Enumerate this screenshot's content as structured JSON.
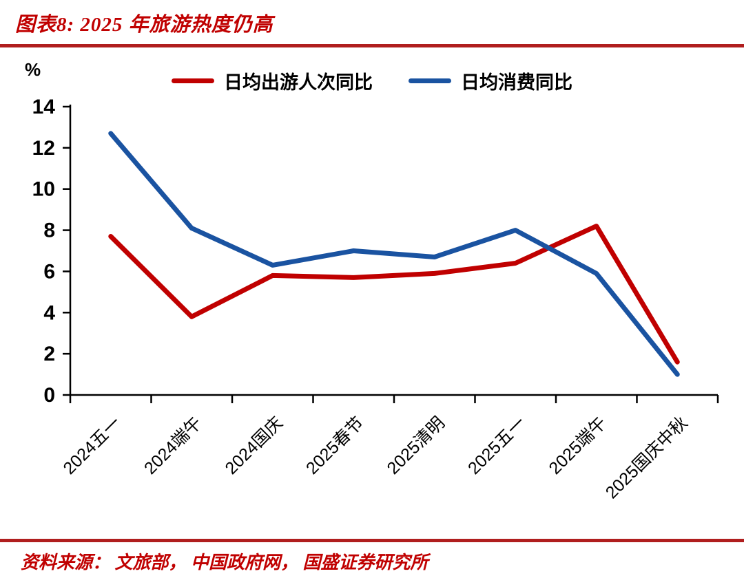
{
  "page": {
    "title": "图表8:  2025 年旅游热度仍高",
    "source": "资料来源：  文旅部，  中国政府网，  国盛证券研究所"
  },
  "colors": {
    "accent_red": "#C00000",
    "rule_red": "#B01E1E",
    "series_red": "#C00000",
    "series_blue": "#1A53A1",
    "axis_black": "#000000"
  },
  "chart_data": {
    "type": "line",
    "title": "图表8: 2025 年旅游热度仍高",
    "unit_label": "%",
    "categories": [
      "2024五一",
      "2024端午",
      "2024国庆",
      "2025春节",
      "2025清明",
      "2025五一",
      "2025端午",
      "2025国庆中秋"
    ],
    "series": [
      {
        "name": "日均出游人次同比",
        "color": "#C00000",
        "values": [
          7.7,
          3.8,
          5.8,
          5.7,
          5.9,
          6.4,
          8.2,
          1.6
        ]
      },
      {
        "name": "日均消费同比",
        "color": "#1A53A1",
        "values": [
          12.7,
          8.1,
          6.3,
          7.0,
          6.7,
          8.0,
          5.9,
          1.0
        ]
      }
    ],
    "ylim": [
      0,
      14
    ],
    "ytick_step": 2,
    "legend_position": "top",
    "grid": false,
    "x_label_rotation_deg": -45
  }
}
